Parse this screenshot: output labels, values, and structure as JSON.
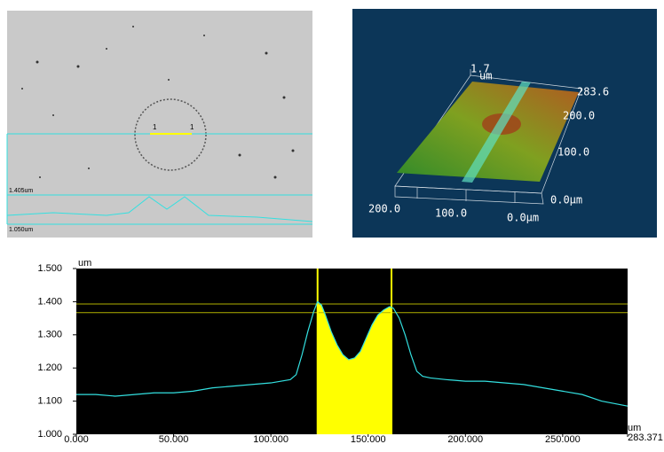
{
  "image_panel": {
    "marker_left": "1",
    "marker_right": "1",
    "upper_label": "1.405um",
    "lower_label": "1.050um"
  },
  "surface_3d": {
    "z_max": "1.7",
    "z_unit": "um",
    "y_ticks": [
      "283.6",
      "200.0",
      "100.0",
      "0.0μm"
    ],
    "x_ticks": [
      "200.0",
      "100.0",
      "0.0μm"
    ]
  },
  "chart_data": {
    "type": "line",
    "y_unit_label": "um",
    "x_unit_label": "um",
    "x": [
      0,
      10,
      20,
      30,
      40,
      50,
      60,
      70,
      80,
      90,
      100,
      110,
      113,
      116,
      119,
      122,
      124,
      126,
      128,
      131,
      134,
      137,
      140,
      143,
      146,
      149,
      152,
      155,
      158,
      161,
      163,
      166,
      169,
      172,
      175,
      178,
      182,
      190,
      200,
      210,
      220,
      230,
      240,
      250,
      260,
      270,
      283.371
    ],
    "series": [
      {
        "color": "#33e0e0",
        "values": [
          1.12,
          1.12,
          1.115,
          1.12,
          1.125,
          1.125,
          1.13,
          1.14,
          1.145,
          1.15,
          1.155,
          1.165,
          1.18,
          1.24,
          1.31,
          1.37,
          1.4,
          1.39,
          1.36,
          1.31,
          1.27,
          1.24,
          1.225,
          1.23,
          1.25,
          1.29,
          1.33,
          1.36,
          1.375,
          1.385,
          1.38,
          1.35,
          1.3,
          1.24,
          1.19,
          1.175,
          1.17,
          1.165,
          1.16,
          1.16,
          1.155,
          1.15,
          1.14,
          1.13,
          1.12,
          1.1,
          1.085
        ]
      }
    ],
    "xlim": [
      0,
      283.371
    ],
    "ylim": [
      1.0,
      1.5
    ],
    "xticks": [
      {
        "value": 0,
        "label": "0.000"
      },
      {
        "value": 50,
        "label": "50.000"
      },
      {
        "value": 100,
        "label": "100.000"
      },
      {
        "value": 150,
        "label": "150.000"
      },
      {
        "value": 200,
        "label": "200.000"
      },
      {
        "value": 250,
        "label": "250.000"
      },
      283.371
    ],
    "yticks": [
      {
        "value": 1.0,
        "label": "1.000"
      },
      {
        "value": 1.1,
        "label": "1.100"
      },
      {
        "value": 1.2,
        "label": "1.200"
      },
      {
        "value": 1.3,
        "label": "1.300"
      },
      {
        "value": 1.4,
        "label": "1.400"
      },
      {
        "value": 1.5,
        "label": "1.500"
      }
    ],
    "cursors": [
      124,
      162
    ],
    "cursor_levels": [
      1.393,
      1.367
    ],
    "cursor_color": "#ffff00",
    "level_color": "#b0b000",
    "background": "#000000"
  }
}
